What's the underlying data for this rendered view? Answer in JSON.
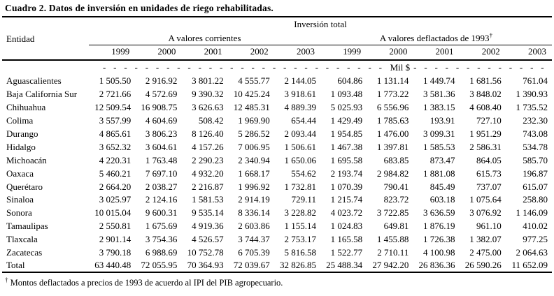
{
  "title": "Cuadro 2. Datos de inversión en unidades de riego rehabilitadas.",
  "table": {
    "header": {
      "entity_col": "Entidad",
      "top_group": "Inversión total",
      "group_left": "A valores corrientes",
      "group_right": "A valores deflactados de 1993",
      "group_right_sup": "†",
      "years": [
        "1999",
        "2000",
        "2001",
        "2002",
        "2003",
        "1999",
        "2000",
        "2001",
        "2002",
        "2003"
      ]
    },
    "unit_row": {
      "dashes_left": "- - - - - - - - - - - - - - - - - - - - - - - - - - - - - - - -",
      "label": "Mil $",
      "dashes_right": "- - - - - - - - - - - - - - - - - - - - - - - -"
    },
    "rows": [
      {
        "entity": "Aguascalientes",
        "values": [
          "1 505.50",
          "2 916.92",
          "3 801.22",
          "4 555.77",
          "2 144.05",
          "604.86",
          "1 131.14",
          "1 449.74",
          "1 681.56",
          "761.04"
        ]
      },
      {
        "entity": "Baja California Sur",
        "values": [
          "2 721.66",
          "4 572.69",
          "9 390.32",
          "10 425.24",
          "3 918.61",
          "1 093.48",
          "1 773.22",
          "3 581.36",
          "3 848.02",
          "1 390.93"
        ]
      },
      {
        "entity": "Chihuahua",
        "values": [
          "12 509.54",
          "16 908.75",
          "3 626.63",
          "12 485.31",
          "4 889.39",
          "5 025.93",
          "6 556.96",
          "1 383.15",
          "4 608.40",
          "1 735.52"
        ]
      },
      {
        "entity": "Colima",
        "values": [
          "3 557.99",
          "4 604.69",
          "508.42",
          "1 969.90",
          "654.44",
          "1 429.49",
          "1 785.63",
          "193.91",
          "727.10",
          "232.30"
        ]
      },
      {
        "entity": "Durango",
        "values": [
          "4 865.61",
          "3 806.23",
          "8 126.40",
          "5 286.52",
          "2 093.44",
          "1 954.85",
          "1 476.00",
          "3 099.31",
          "1 951.29",
          "743.08"
        ]
      },
      {
        "entity": "Hidalgo",
        "values": [
          "3 652.32",
          "3 604.61",
          "4 157.26",
          "7 006.95",
          "1 506.61",
          "1 467.38",
          "1 397.81",
          "1 585.53",
          "2 586.31",
          "534.78"
        ]
      },
      {
        "entity": "Michoacán",
        "values": [
          "4 220.31",
          "1 763.48",
          "2 290.23",
          "2 340.94",
          "1 650.06",
          "1 695.58",
          "683.85",
          "873.47",
          "864.05",
          "585.70"
        ]
      },
      {
        "entity": "Oaxaca",
        "values": [
          "5 460.21",
          "7 697.10",
          "4 932.20",
          "1 668.17",
          "554.62",
          "2 193.74",
          "2 984.82",
          "1 881.08",
          "615.73",
          "196.87"
        ]
      },
      {
        "entity": "Querétaro",
        "values": [
          "2 664.20",
          "2 038.27",
          "2 216.87",
          "1 996.92",
          "1 732.81",
          "1 070.39",
          "790.41",
          "845.49",
          "737.07",
          "615.07"
        ]
      },
      {
        "entity": "Sinaloa",
        "values": [
          "3 025.97",
          "2 124.16",
          "1 581.53",
          "2 914.19",
          "729.11",
          "1 215.74",
          "823.72",
          "603.18",
          "1 075.64",
          "258.80"
        ]
      },
      {
        "entity": "Sonora",
        "values": [
          "10 015.04",
          "9 600.31",
          "9 535.14",
          "8 336.14",
          "3 228.82",
          "4 023.72",
          "3 722.85",
          "3 636.59",
          "3 076.92",
          "1 146.09"
        ]
      },
      {
        "entity": "Tamaulipas",
        "values": [
          "2 550.81",
          "1 675.69",
          "4 919.36",
          "2 603.86",
          "1 155.14",
          "1 024.83",
          "649.81",
          "1 876.19",
          "961.10",
          "410.02"
        ]
      },
      {
        "entity": "Tlaxcala",
        "values": [
          "2 901.14",
          "3 754.36",
          "4 526.57",
          "3 744.37",
          "2 753.17",
          "1 165.58",
          "1 455.88",
          "1 726.38",
          "1 382.07",
          "977.25"
        ]
      },
      {
        "entity": "Zacatecas",
        "values": [
          "3 790.18",
          "6 988.69",
          "10 752.78",
          "6 705.39",
          "5 816.58",
          "1 522.77",
          "2 710.11",
          "4 100.98",
          "2 475.00",
          "2 064.63"
        ]
      },
      {
        "entity": "Total",
        "values": [
          "63 440.48",
          "72 055.95",
          "70 364.93",
          "72 039.67",
          "32 826.85",
          "25 488.34",
          "27 942.20",
          "26 836.36",
          "26 590.26",
          "11 652.09"
        ]
      }
    ]
  },
  "footnote": {
    "marker": "†",
    "text": "Montos deflactados a precios de 1993 de acuerdo al IPI del PIB agropecuario."
  }
}
